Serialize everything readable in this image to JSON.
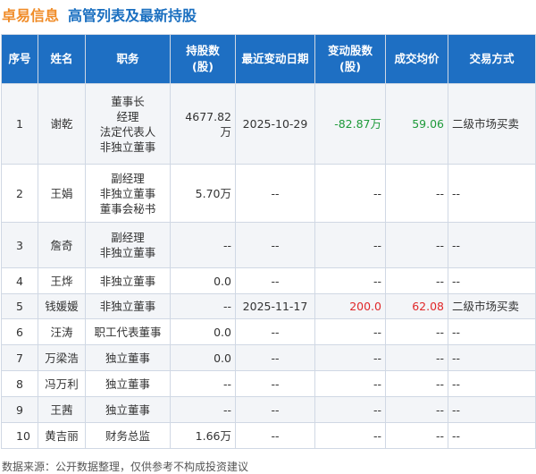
{
  "header": {
    "company": "卓易信息",
    "title": "高管列表及最新持股"
  },
  "table": {
    "columns": [
      "序号",
      "姓名",
      "职务",
      [
        "持股数",
        "(股)"
      ],
      "最近变动日期",
      [
        "变动股数",
        "(股)"
      ],
      "成交均价",
      "交易方式"
    ],
    "rows": [
      [
        "1",
        "谢乾",
        [
          "董事长",
          "经理",
          "法定代表人",
          "非独立董事"
        ],
        "4677.82万",
        "2025-10-29",
        "-82.87万",
        "59.06",
        "二级市场买卖"
      ],
      [
        "2",
        "王娟",
        [
          "副经理",
          "非独立董事",
          "董事会秘书"
        ],
        "5.70万",
        "--",
        "--",
        "--",
        "--"
      ],
      [
        "3",
        "詹奇",
        [
          "副经理",
          "非独立董事"
        ],
        "--",
        "--",
        "--",
        "--",
        "--"
      ],
      [
        "4",
        "王烨",
        [
          "非独立董事"
        ],
        "0.0",
        "--",
        "--",
        "--",
        "--"
      ],
      [
        "5",
        "钱媛媛",
        [
          "非独立董事"
        ],
        "--",
        "2025-11-17",
        "200.0",
        "62.08",
        "二级市场买卖"
      ],
      [
        "6",
        "汪涛",
        [
          "职工代表董事"
        ],
        "0.0",
        "--",
        "--",
        "--",
        "--"
      ],
      [
        "7",
        "万梁浩",
        [
          "独立董事"
        ],
        "0.0",
        "--",
        "--",
        "--",
        "--"
      ],
      [
        "8",
        "冯万利",
        [
          "独立董事"
        ],
        "--",
        "--",
        "--",
        "--",
        "--"
      ],
      [
        "9",
        "王茜",
        [
          "独立董事"
        ],
        "--",
        "--",
        "--",
        "--",
        "--"
      ],
      [
        "10",
        "黄吉丽",
        [
          "财务总监"
        ],
        "1.66万",
        "--",
        "--",
        "--",
        "--"
      ]
    ]
  },
  "footer": {
    "source": "数据来源：公开数据整理，仅供参考不构成投资建议"
  }
}
